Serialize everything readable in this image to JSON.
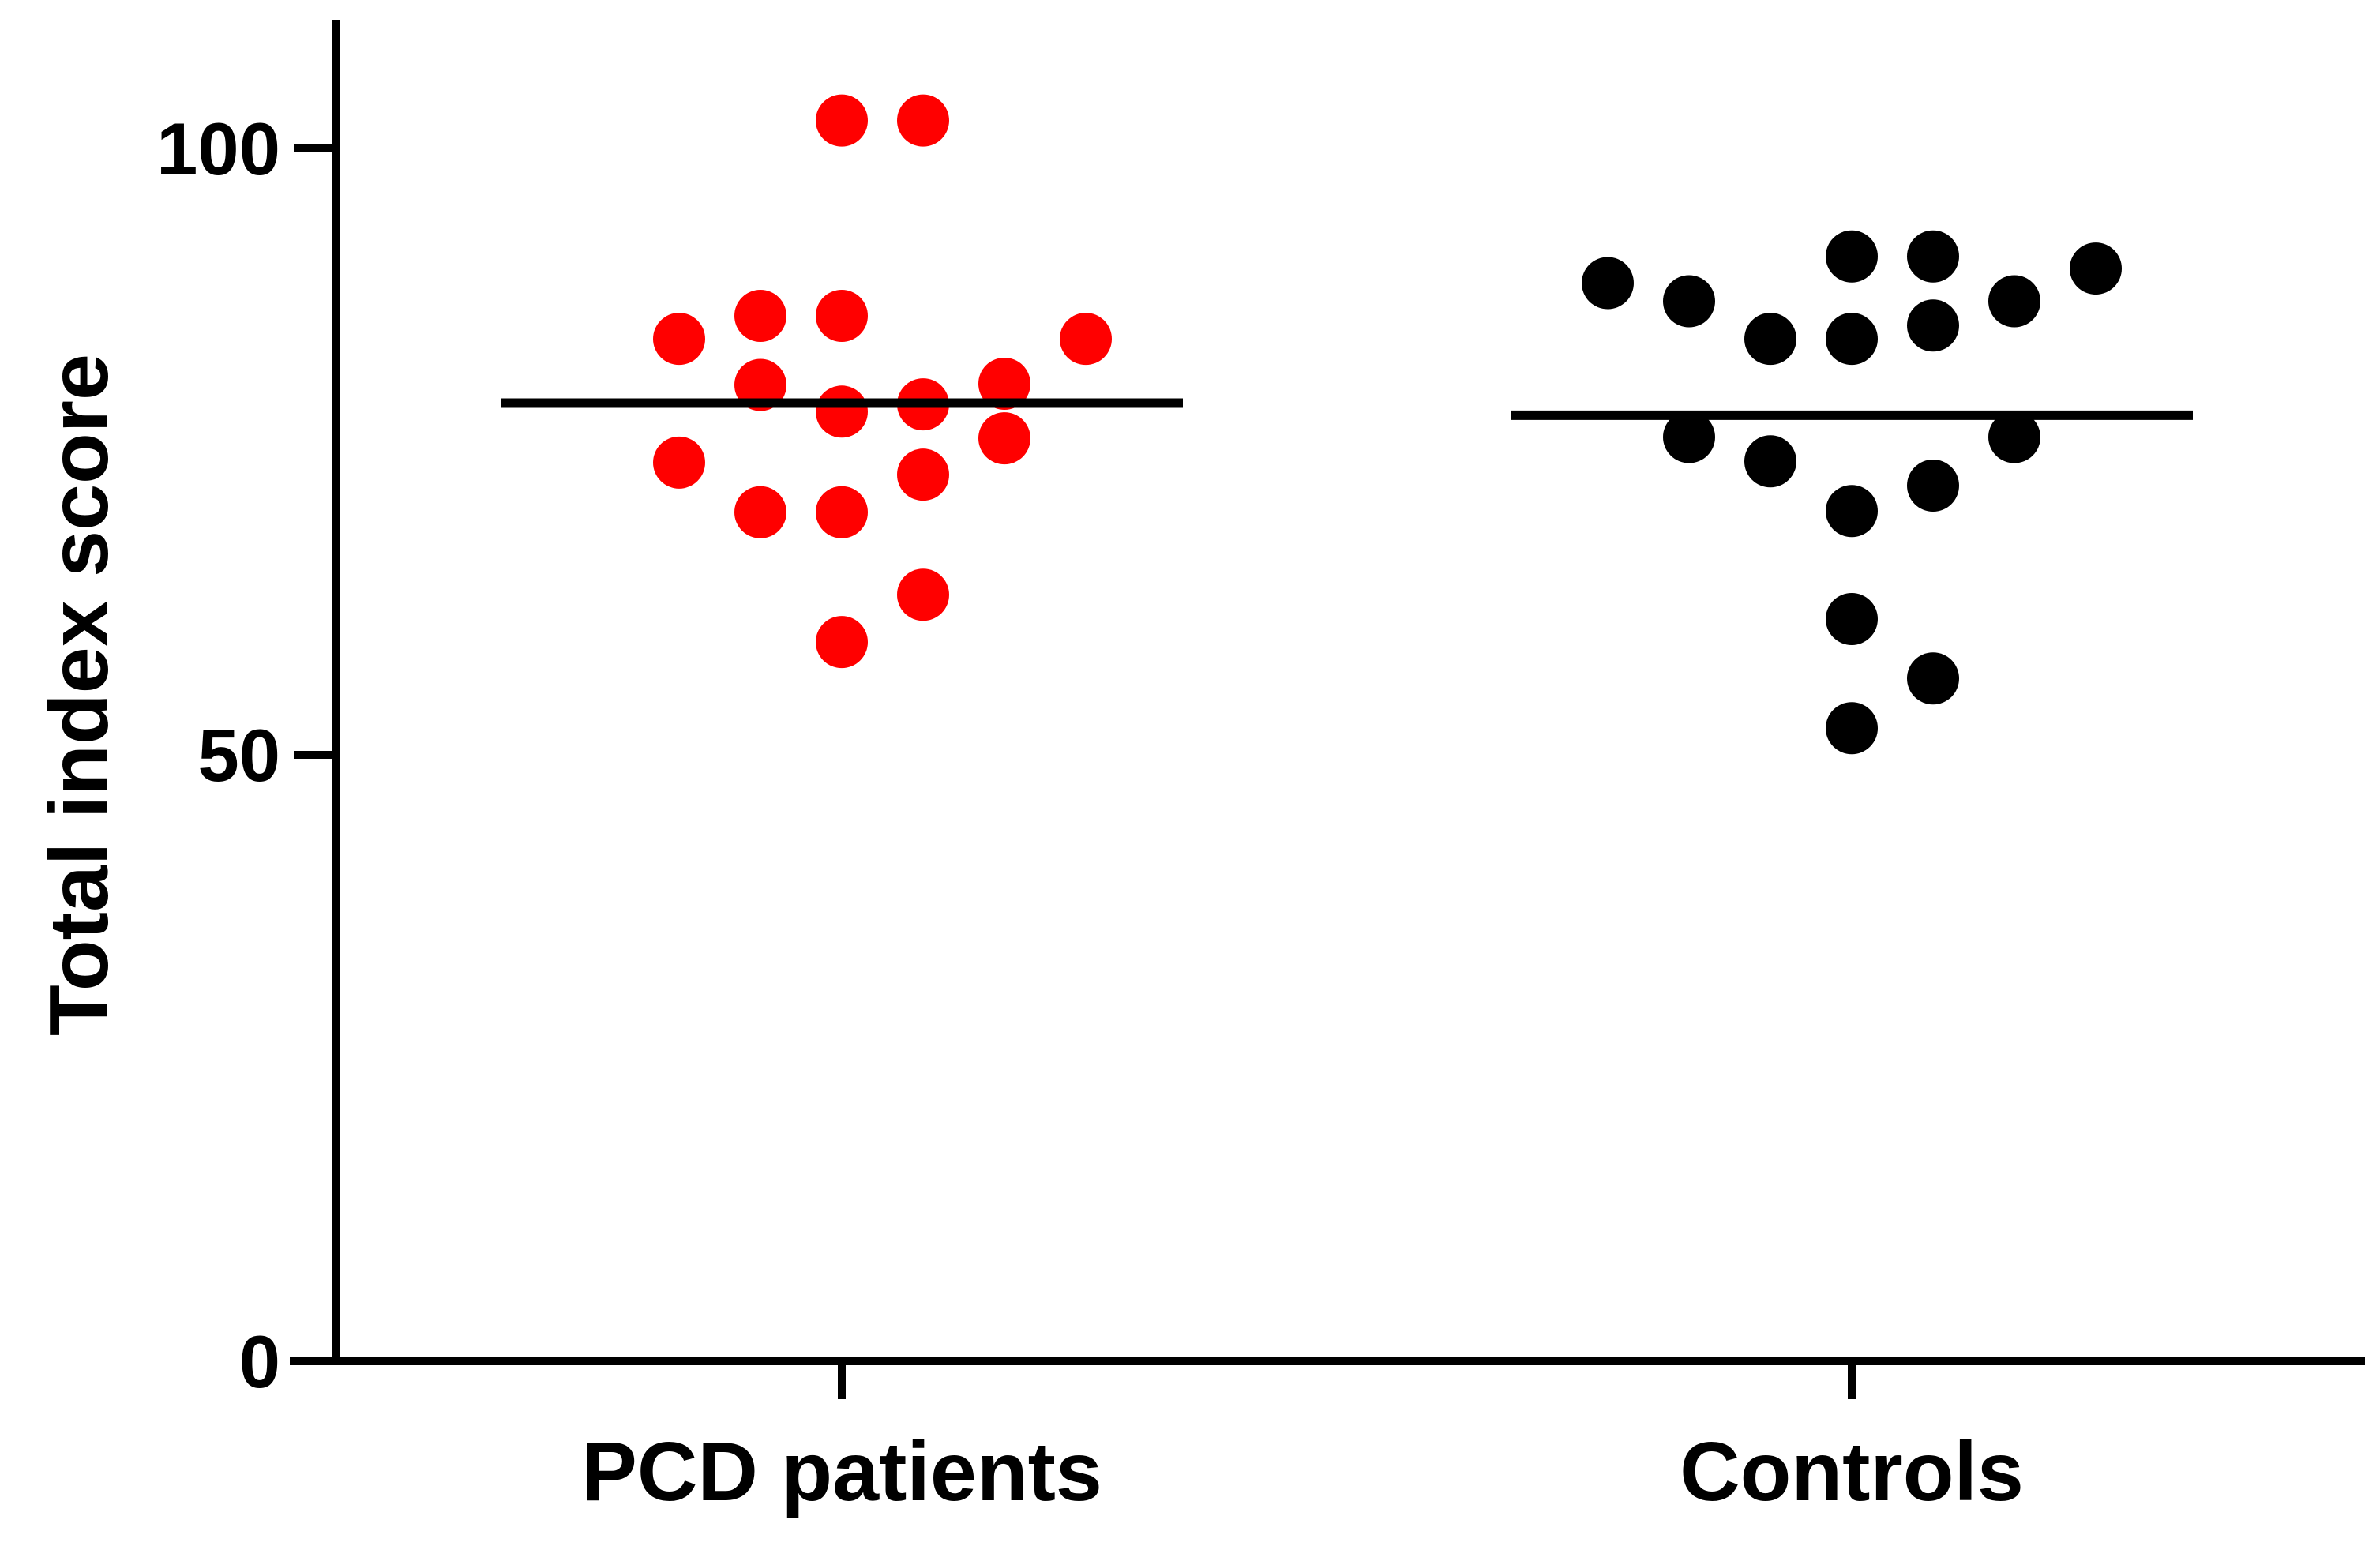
{
  "chart_data": {
    "type": "scatter",
    "title": "",
    "xlabel": "",
    "ylabel": "Total index score",
    "ylim": [
      0,
      110
    ],
    "yticks": [
      0,
      50,
      100
    ],
    "categories": [
      "PCD patients",
      "Controls"
    ],
    "series": [
      {
        "name": "PCD patients",
        "color": "#ff0000",
        "mean": 79,
        "points": [
          {
            "offset": 0,
            "value": 102.3
          },
          {
            "offset": 1,
            "value": 102.3
          },
          {
            "offset": -1,
            "value": 86.2
          },
          {
            "offset": 0,
            "value": 86.2
          },
          {
            "offset": -2,
            "value": 84.3
          },
          {
            "offset": 3,
            "value": 84.3
          },
          {
            "offset": -1,
            "value": 80.5
          },
          {
            "offset": 2,
            "value": 80.6
          },
          {
            "offset": 0,
            "value": 78.3
          },
          {
            "offset": 1,
            "value": 78.9
          },
          {
            "offset": 2,
            "value": 76.1
          },
          {
            "offset": -2,
            "value": 74.1
          },
          {
            "offset": 1,
            "value": 73.1
          },
          {
            "offset": -1,
            "value": 70.0
          },
          {
            "offset": 0,
            "value": 70.0
          },
          {
            "offset": 1,
            "value": 63.2
          },
          {
            "offset": 0,
            "value": 59.3
          }
        ]
      },
      {
        "name": "Controls",
        "color": "#000000",
        "mean": 78,
        "points": [
          {
            "offset": 0,
            "value": 91.1
          },
          {
            "offset": 1,
            "value": 91.1
          },
          {
            "offset": 3,
            "value": 90.1
          },
          {
            "offset": -3,
            "value": 88.9
          },
          {
            "offset": -2,
            "value": 87.4
          },
          {
            "offset": 2,
            "value": 87.4
          },
          {
            "offset": 1,
            "value": 85.4
          },
          {
            "offset": -1,
            "value": 84.3
          },
          {
            "offset": 0,
            "value": 84.3
          },
          {
            "offset": -2,
            "value": 76.2
          },
          {
            "offset": 2,
            "value": 76.2
          },
          {
            "offset": -1,
            "value": 74.2
          },
          {
            "offset": 1,
            "value": 72.2
          },
          {
            "offset": 0,
            "value": 70.1
          },
          {
            "offset": 0,
            "value": 61.2
          },
          {
            "offset": 1,
            "value": 56.3
          },
          {
            "offset": 0,
            "value": 52.2
          }
        ]
      }
    ]
  }
}
